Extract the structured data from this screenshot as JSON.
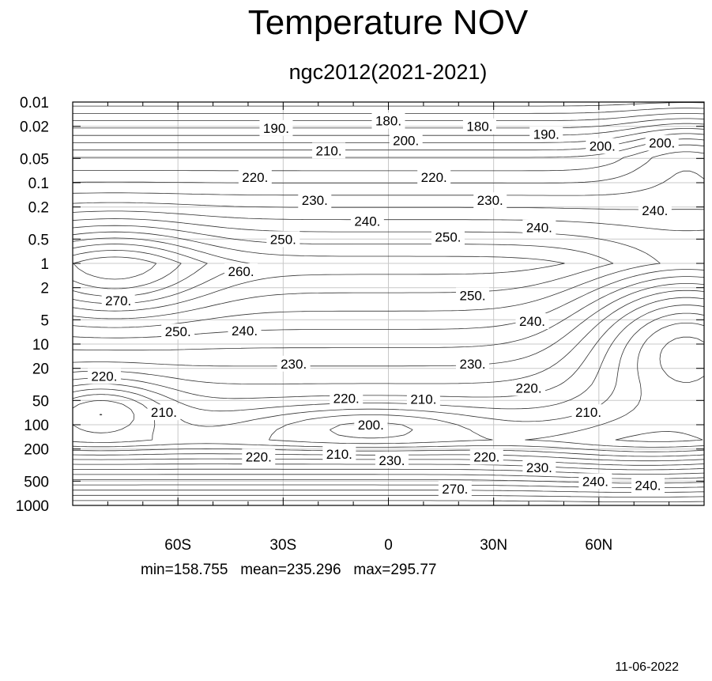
{
  "title": "Temperature NOV",
  "subtitle": "ngc2012(2021-2021)",
  "stats_text": "min=158.755   mean=235.296   max=295.77",
  "footer_date": "11-06-2022",
  "chart_data": {
    "type": "contour",
    "title": "Temperature NOV",
    "subtitle": "ngc2012(2021-2021)",
    "x_axis": {
      "scale": "linear",
      "range": [
        -90,
        90
      ],
      "unit": "degrees latitude",
      "ticks": [
        {
          "value": -60,
          "label": "60S"
        },
        {
          "value": -30,
          "label": "30S"
        },
        {
          "value": 0,
          "label": "0"
        },
        {
          "value": 30,
          "label": "30N"
        },
        {
          "value": 60,
          "label": "60N"
        }
      ]
    },
    "y_axis": {
      "scale": "log",
      "inverted": true,
      "range": [
        1000,
        0.01
      ],
      "unit": "hPa",
      "ticks": [
        "0.01",
        "0.02",
        "0.05",
        "0.1",
        "0.2",
        "0.5",
        "1",
        "2",
        "5",
        "10",
        "20",
        "50",
        "100",
        "200",
        "500",
        "1000"
      ]
    },
    "grid": true,
    "contour_interval": 5,
    "contour_labels": [
      {
        "value": "180.",
        "lat": 0,
        "p": 0.017
      },
      {
        "value": "180.",
        "lat": 26,
        "p": 0.02
      },
      {
        "value": "190.",
        "lat": -32,
        "p": 0.021
      },
      {
        "value": "190.",
        "lat": 45,
        "p": 0.025
      },
      {
        "value": "200.",
        "lat": 5,
        "p": 0.03
      },
      {
        "value": "200.",
        "lat": 61,
        "p": 0.035
      },
      {
        "value": "200.",
        "lat": 78,
        "p": 0.032
      },
      {
        "value": "210.",
        "lat": -17,
        "p": 0.04
      },
      {
        "value": "220.",
        "lat": -38,
        "p": 0.085
      },
      {
        "value": "220.",
        "lat": 13,
        "p": 0.085
      },
      {
        "value": "230.",
        "lat": -21,
        "p": 0.165
      },
      {
        "value": "230.",
        "lat": 29,
        "p": 0.165
      },
      {
        "value": "240.",
        "lat": -6,
        "p": 0.3
      },
      {
        "value": "240.",
        "lat": 43,
        "p": 0.36
      },
      {
        "value": "240.",
        "lat": 76,
        "p": 0.22
      },
      {
        "value": "250.",
        "lat": -30,
        "p": 0.5
      },
      {
        "value": "250.",
        "lat": 17,
        "p": 0.47
      },
      {
        "value": "260.",
        "lat": -42,
        "p": 1.25
      },
      {
        "value": "270.",
        "lat": -77,
        "p": 2.9
      },
      {
        "value": "250.",
        "lat": 24,
        "p": 2.5
      },
      {
        "value": "250.",
        "lat": -60,
        "p": 7.0
      },
      {
        "value": "240.",
        "lat": -41,
        "p": 6.8
      },
      {
        "value": "240.",
        "lat": 41,
        "p": 5.2
      },
      {
        "value": "230.",
        "lat": -27,
        "p": 17.5
      },
      {
        "value": "230.",
        "lat": 24,
        "p": 17.5
      },
      {
        "value": "220.",
        "lat": -81,
        "p": 25
      },
      {
        "value": "220.",
        "lat": -12,
        "p": 47
      },
      {
        "value": "220.",
        "lat": 40,
        "p": 35
      },
      {
        "value": "210.",
        "lat": -64,
        "p": 70
      },
      {
        "value": "210.",
        "lat": 10,
        "p": 48
      },
      {
        "value": "210.",
        "lat": 57,
        "p": 70
      },
      {
        "value": "200.",
        "lat": -5,
        "p": 100
      },
      {
        "value": "220.",
        "lat": -37,
        "p": 250
      },
      {
        "value": "210.",
        "lat": -14,
        "p": 230
      },
      {
        "value": "230.",
        "lat": 1,
        "p": 275
      },
      {
        "value": "220.",
        "lat": 28,
        "p": 250
      },
      {
        "value": "230.",
        "lat": 43,
        "p": 340
      },
      {
        "value": "240.",
        "lat": 59,
        "p": 500
      },
      {
        "value": "240.",
        "lat": 74,
        "p": 560
      },
      {
        "value": "270.",
        "lat": 19,
        "p": 620
      }
    ]
  }
}
